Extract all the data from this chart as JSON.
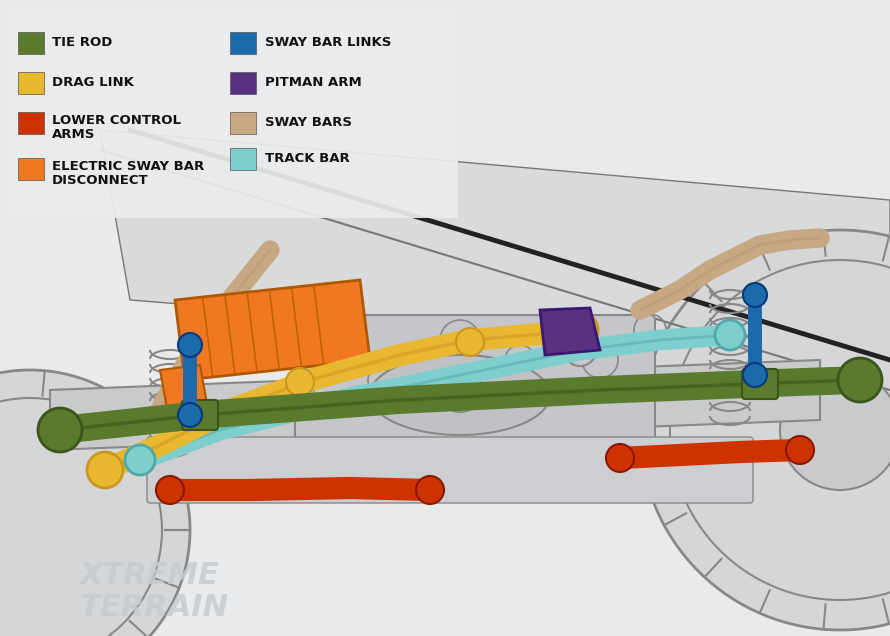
{
  "background_color": "#e8eaec",
  "legend_bg": "#eaecee",
  "legend_text_color": "#111111",
  "legend_font_size": 9.5,
  "fig_width": 8.9,
  "fig_height": 6.36,
  "colors": {
    "tie_rod": "#5a7a2e",
    "drag_link": "#e8b830",
    "lower_control_arms": "#cc3300",
    "electric_sway_bar": "#f07820",
    "sway_bar_links": "#1a6aac",
    "pitman_arm": "#5a3080",
    "sway_bars": "#c8a882",
    "track_bar": "#7ecece",
    "outline": "#888888",
    "chassis": "#c0c4c8",
    "chassis_line": "#777777",
    "dark_line": "#222222"
  },
  "legend_items_left": [
    {
      "label": "TIE ROD",
      "color_key": "tie_rod"
    },
    {
      "label": "DRAG LINK",
      "color_key": "drag_link"
    },
    {
      "label": "LOWER CONTROL\nARMS",
      "color_key": "lower_control_arms"
    },
    {
      "label": "ELECTRIC SWAY BAR\nDISCONNECT",
      "color_key": "electric_sway_bar"
    }
  ],
  "legend_items_right": [
    {
      "label": "SWAY BAR LINKS",
      "color_key": "sway_bar_links"
    },
    {
      "label": "PITMAN ARM",
      "color_key": "pitman_arm"
    },
    {
      "label": "SWAY BARS",
      "color_key": "sway_bars"
    },
    {
      "label": "TRACK BAR",
      "color_key": "track_bar"
    }
  ],
  "watermark_lines": [
    "XTREME",
    "TERRAIN"
  ],
  "watermark_color": "#c8cccf"
}
